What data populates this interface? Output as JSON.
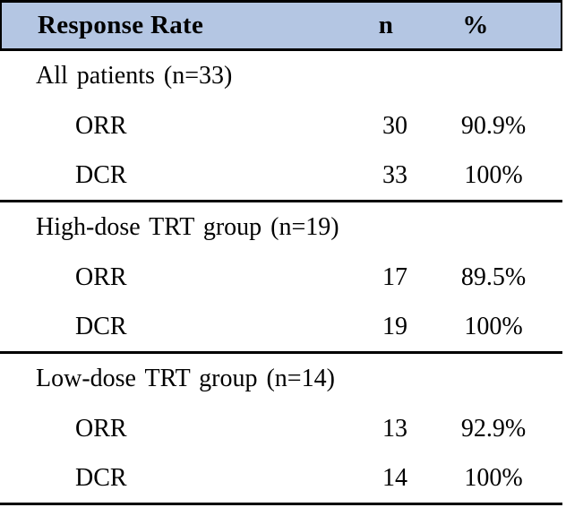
{
  "table": {
    "header": {
      "response_rate": "Response Rate",
      "n": "n",
      "percent": "%"
    },
    "sections": [
      {
        "title": "All patients (n=33)",
        "rows": [
          {
            "label": "ORR",
            "n": "30",
            "pct": "90.9%"
          },
          {
            "label": "DCR",
            "n": "33",
            "pct": "100%"
          }
        ]
      },
      {
        "title": "High-dose TRT group (n=19)",
        "rows": [
          {
            "label": "ORR",
            "n": "17",
            "pct": "89.5%"
          },
          {
            "label": "DCR",
            "n": "19",
            "pct": "100%"
          }
        ]
      },
      {
        "title": "Low-dose TRT group (n=14)",
        "rows": [
          {
            "label": "ORR",
            "n": "13",
            "pct": "92.9%"
          },
          {
            "label": "DCR",
            "n": "14",
            "pct": "100%"
          }
        ]
      }
    ],
    "colors": {
      "header_bg": "#B4C6E3",
      "border": "#000000",
      "text": "#000000"
    }
  }
}
